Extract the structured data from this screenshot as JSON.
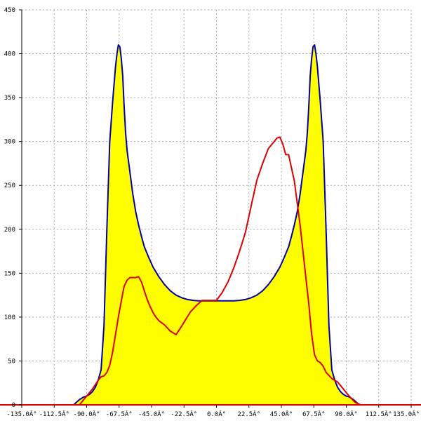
{
  "chart_data": {
    "type": "area",
    "xlim": [
      -135,
      135
    ],
    "ylim": [
      0,
      450
    ],
    "x_ticks": [
      -135,
      -112.5,
      -90,
      -67.5,
      -45,
      -22.5,
      0,
      22.5,
      45,
      67.5,
      90,
      112.5,
      135
    ],
    "x_tick_labels": [
      "-135.0Â°",
      "-112.5Â°",
      "-90.0Â°",
      "-67.5Â°",
      "-45.0Â°",
      "-22.5Â°",
      "0.0Â°",
      "22.5Â°",
      "45.0Â°",
      "67.5Â°",
      "90.0Â°",
      "112.5Â°",
      "135.0Â°"
    ],
    "y_ticks": [
      0,
      50,
      100,
      150,
      200,
      250,
      300,
      350,
      400,
      450
    ],
    "y_tick_labels": [
      "0",
      "50",
      "100",
      "150",
      "200",
      "250",
      "300",
      "350",
      "400",
      "450"
    ],
    "grid": true,
    "colors": {
      "fill": "#ffff00",
      "fill_outline": "#808000",
      "symmetric": "#0000aa",
      "measured": "#dd0000",
      "axis": "#dd0000",
      "grid": "#aaaaaa"
    },
    "series": [
      {
        "style": "filled-area",
        "x": [
          -99,
          -97,
          -95,
          -92,
          -90,
          -88,
          -86,
          -84,
          -82,
          -80,
          -78,
          -76,
          -74,
          -72,
          -70,
          -69,
          -68,
          -67,
          -66,
          -65,
          -64,
          -63,
          -62,
          -60,
          -58,
          -56,
          -54,
          -52,
          -50,
          -47,
          -44,
          -40,
          -36,
          -32,
          -28,
          -24,
          -20,
          -16,
          -12,
          -8,
          -4,
          0,
          4,
          8,
          12,
          16,
          20,
          24,
          28,
          32,
          36,
          40,
          44,
          47,
          50,
          52,
          54,
          56,
          58,
          60,
          62,
          63,
          64,
          65,
          66,
          67,
          68,
          69,
          70,
          72,
          74,
          76,
          78,
          80,
          82,
          84,
          86,
          88,
          90,
          92,
          95,
          97,
          99
        ],
        "y": [
          0,
          3,
          6,
          9,
          10,
          12,
          15,
          20,
          28,
          40,
          90,
          200,
          300,
          345,
          385,
          400,
          410,
          408,
          395,
          375,
          340,
          310,
          290,
          265,
          240,
          220,
          205,
          192,
          180,
          168,
          157,
          146,
          137,
          130,
          125,
          122,
          120,
          119,
          118.5,
          118.5,
          118.5,
          118.5,
          118.5,
          118.5,
          118.5,
          119,
          120,
          122,
          125,
          130,
          137,
          146,
          157,
          168,
          180,
          192,
          205,
          220,
          240,
          265,
          290,
          310,
          340,
          375,
          395,
          408,
          410,
          400,
          385,
          345,
          300,
          200,
          90,
          40,
          28,
          20,
          15,
          12,
          10,
          9,
          6,
          3,
          0
        ]
      },
      {
        "style": "line",
        "x": [
          -99,
          -97,
          -95,
          -92,
          -90,
          -88,
          -86,
          -84,
          -82,
          -80,
          -78,
          -76,
          -74,
          -72,
          -70,
          -69,
          -68,
          -67,
          -66,
          -65,
          -64,
          -63,
          -62,
          -60,
          -58,
          -56,
          -54,
          -52,
          -50,
          -47,
          -44,
          -40,
          -36,
          -32,
          -28,
          -24,
          -20,
          -16,
          -12,
          -8,
          -4,
          0,
          4,
          8,
          12,
          16,
          20,
          24,
          28,
          32,
          36,
          40,
          44,
          47,
          50,
          52,
          54,
          56,
          58,
          60,
          62,
          63,
          64,
          65,
          66,
          67,
          68,
          69,
          70,
          72,
          74,
          76,
          78,
          80,
          82,
          84,
          86,
          88,
          90,
          92,
          95,
          97,
          99
        ],
        "y": [
          0,
          3,
          6,
          9,
          10,
          12,
          15,
          20,
          28,
          40,
          90,
          200,
          300,
          345,
          385,
          400,
          410,
          408,
          395,
          375,
          340,
          310,
          290,
          265,
          240,
          220,
          205,
          192,
          180,
          168,
          157,
          146,
          137,
          130,
          125,
          122,
          120,
          119,
          118.5,
          118.5,
          118.5,
          118.5,
          118.5,
          118.5,
          118.5,
          119,
          120,
          122,
          125,
          130,
          137,
          146,
          157,
          168,
          180,
          192,
          205,
          220,
          240,
          265,
          290,
          310,
          340,
          375,
          395,
          408,
          410,
          400,
          385,
          345,
          300,
          200,
          90,
          40,
          28,
          20,
          15,
          12,
          10,
          9,
          6,
          3,
          0
        ]
      },
      {
        "style": "line",
        "x": [
          -95,
          -90,
          -86,
          -82,
          -80,
          -78,
          -76,
          -74,
          -72,
          -70,
          -68,
          -66,
          -64,
          -62,
          -60,
          -58,
          -56,
          -54,
          -52,
          -50,
          -48,
          -46,
          -44,
          -42,
          -40,
          -36,
          -32,
          -28,
          -24,
          -21,
          -18,
          -14,
          -10,
          -6,
          -2,
          0,
          4,
          8,
          12,
          16,
          20,
          24,
          28,
          32,
          36,
          40,
          42,
          44,
          46,
          48,
          50,
          54,
          58,
          62,
          64,
          66,
          68,
          70,
          72,
          74,
          76,
          80,
          84,
          88,
          92,
          96,
          100
        ],
        "y": [
          0,
          10,
          18,
          28,
          32,
          33,
          37,
          45,
          60,
          80,
          100,
          118,
          135,
          142,
          145,
          145,
          145,
          146,
          140,
          130,
          120,
          112,
          105,
          100,
          96,
          91,
          84,
          80,
          90,
          98,
          106,
          113,
          119,
          119,
          119,
          119,
          128,
          140,
          156,
          175,
          196,
          226,
          256,
          275,
          292,
          300,
          304,
          305,
          297,
          285,
          285,
          255,
          205,
          145,
          115,
          80,
          57,
          50,
          48,
          44,
          37,
          30,
          26,
          18,
          10,
          3,
          0
        ]
      }
    ]
  }
}
